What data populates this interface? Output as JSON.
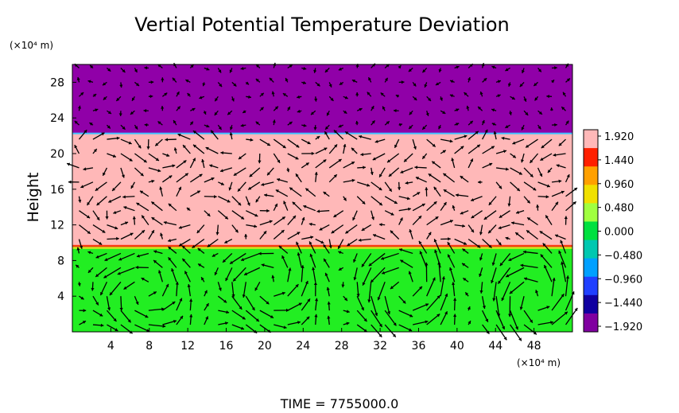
{
  "chart_data": {
    "type": "heatmap",
    "title": "Vertial Potential Temperature Deviation",
    "ylabel": "Height",
    "y_unit_label": "(×10⁴ m)",
    "x_unit_label": "(×10⁴ m)",
    "footer": "TIME  =  7755000.0",
    "xlim": [
      0,
      52
    ],
    "ylim": [
      0,
      30
    ],
    "x_ticks": [
      "4",
      "8",
      "12",
      "16",
      "20",
      "24",
      "28",
      "32",
      "36",
      "40",
      "44",
      "48"
    ],
    "x_tick_values": [
      4,
      8,
      12,
      16,
      20,
      24,
      28,
      32,
      36,
      40,
      44,
      48
    ],
    "y_ticks": [
      "4",
      "8",
      "12",
      "16",
      "20",
      "24",
      "28"
    ],
    "y_tick_values": [
      4,
      8,
      12,
      16,
      20,
      24,
      28
    ],
    "colorbar": {
      "labels": [
        "1.920",
        "1.440",
        "0.960",
        "0.480",
        "0.000",
        "−0.480",
        "−0.960",
        "−1.440",
        "−1.920"
      ],
      "values": [
        1.92,
        1.44,
        0.96,
        0.48,
        0.0,
        -0.48,
        -0.96,
        -1.44,
        -1.92
      ],
      "colors": [
        "#ffb8b8",
        "#ff2000",
        "#ffa000",
        "#f0e000",
        "#a0ff40",
        "#00e040",
        "#00c8b0",
        "#00a0ff",
        "#2040ff",
        "#1000a0",
        "#8000a0"
      ]
    },
    "layers": [
      {
        "y_range": [
          22.3,
          30
        ],
        "value": -1.92,
        "color": "#9000a8"
      },
      {
        "y_range": [
          9.6,
          22.3
        ],
        "value": 1.92,
        "color": "#ffb8b8"
      },
      {
        "y_range": [
          0,
          9.6
        ],
        "value": 0.1,
        "color": "#22ee22"
      }
    ],
    "vortices": [
      {
        "x": 6.5,
        "y": 4.5
      },
      {
        "x": 19.5,
        "y": 5.5
      },
      {
        "x": 34,
        "y": 5
      },
      {
        "x": 48,
        "y": 4
      }
    ]
  }
}
